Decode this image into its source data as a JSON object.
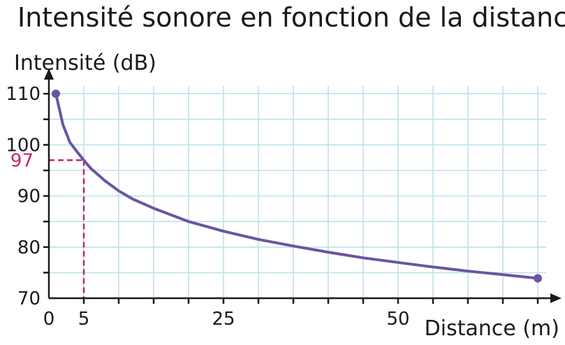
{
  "chart_data": {
    "type": "line",
    "title": "Intensité sonore en fonction de la distance",
    "ylabel": "Intensité (dB)",
    "xlabel": "Distance (m)",
    "xlim": [
      0,
      72
    ],
    "ylim": [
      70,
      112
    ],
    "x_tick_labels": [
      {
        "value": 0,
        "label": "0"
      },
      {
        "value": 5,
        "label": "5"
      },
      {
        "value": 25,
        "label": "25"
      },
      {
        "value": 50,
        "label": "50"
      }
    ],
    "y_tick_labels": [
      {
        "value": 70,
        "label": "70"
      },
      {
        "value": 80,
        "label": "80"
      },
      {
        "value": 90,
        "label": "90"
      },
      {
        "value": 100,
        "label": "100"
      },
      {
        "value": 110,
        "label": "110"
      }
    ],
    "grid": true,
    "series": [
      {
        "color": "#6b55a0",
        "x": [
          1,
          2,
          3,
          4,
          5,
          6,
          8,
          10,
          12,
          15,
          20,
          25,
          30,
          35,
          40,
          45,
          50,
          55,
          60,
          65,
          70
        ],
        "y": [
          110,
          104,
          100.5,
          98.7,
          97,
          95.4,
          93,
          91,
          89.4,
          87.6,
          85.0,
          83.1,
          81.5,
          80.2,
          79.0,
          77.9,
          77.0,
          76.1,
          75.3,
          74.6,
          73.9
        ]
      }
    ],
    "annotation": {
      "x": 5,
      "y": 97,
      "label": "97",
      "color": "#c0266a"
    }
  }
}
